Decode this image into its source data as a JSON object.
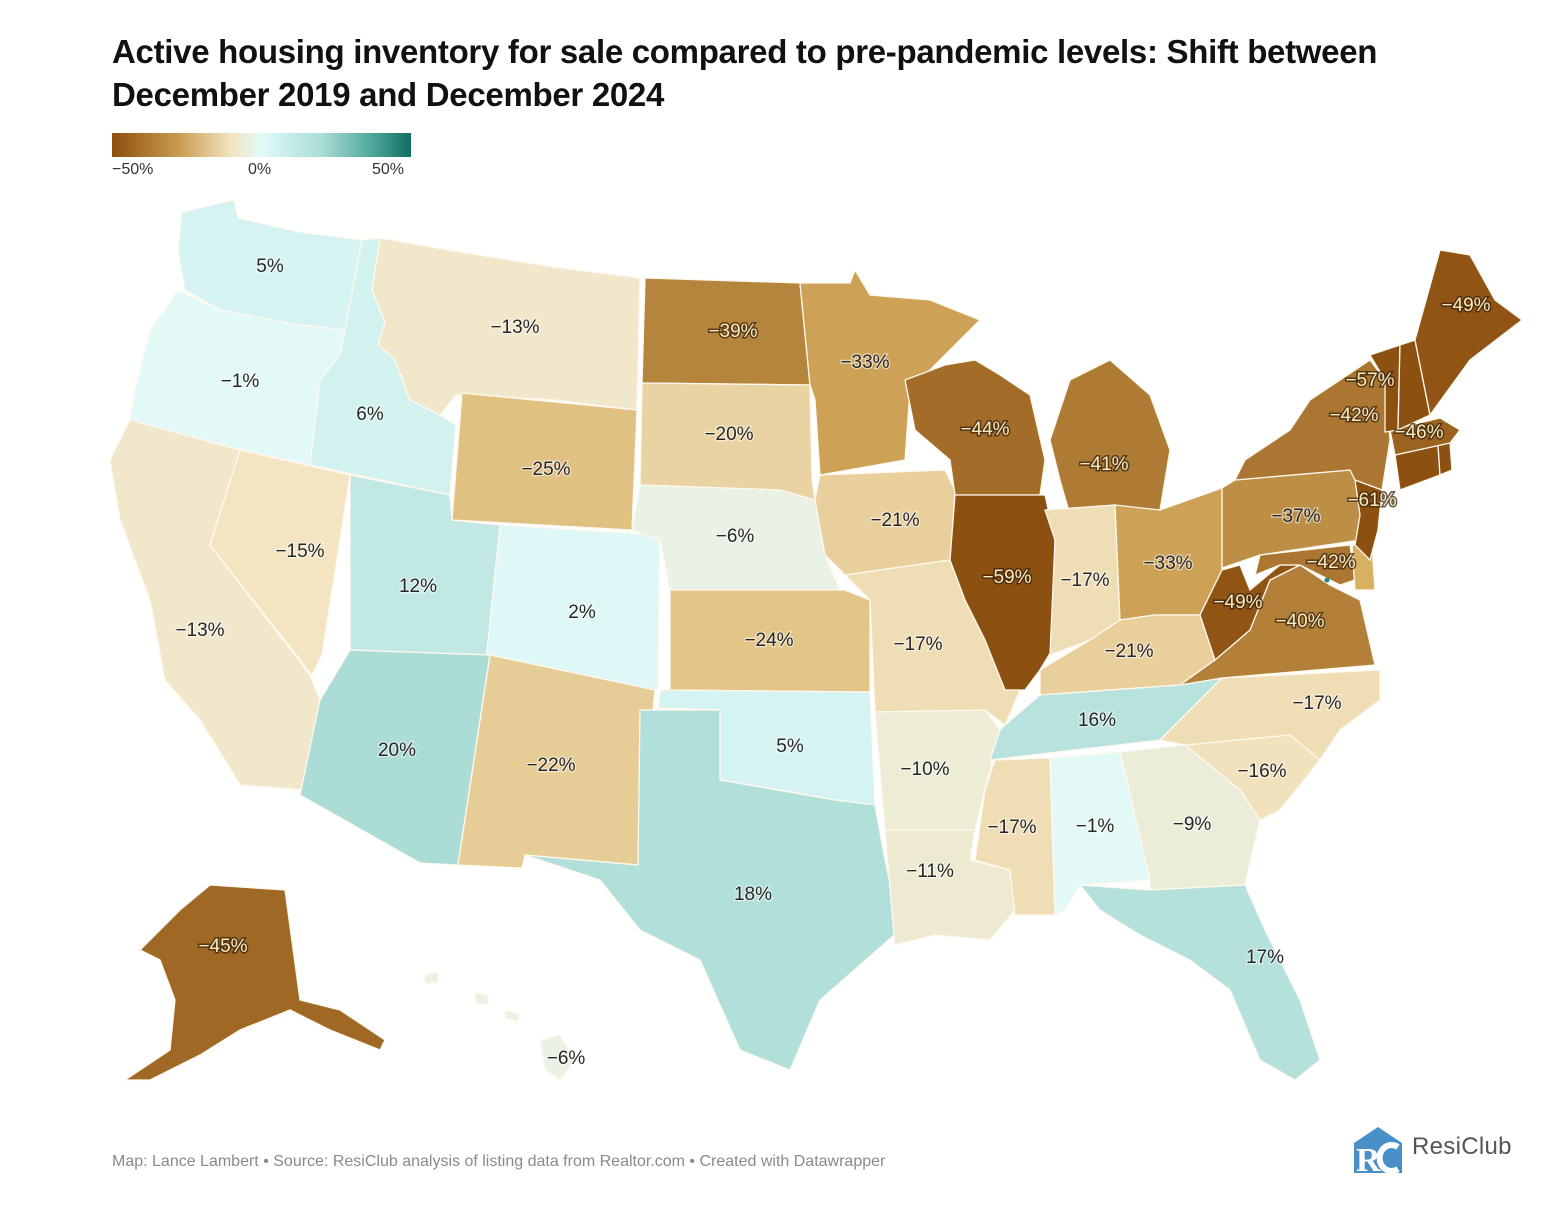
{
  "title": "Active housing inventory for sale compared to pre-pandemic levels: Shift between December 2019 and December 2024",
  "legend": {
    "ticks": [
      "-50%",
      "0%",
      "50%"
    ],
    "colors": {
      "low": "#8c5010",
      "mid": "#e0fbfb",
      "high": "#0f6f62"
    }
  },
  "chart_data": {
    "type": "choropleth",
    "title": "Active housing inventory for sale compared to pre-pandemic levels: Shift between December 2019 and December 2024",
    "unit": "%",
    "range": [
      -50,
      50
    ],
    "states": [
      {
        "id": "WA",
        "value": 5,
        "label": "5%"
      },
      {
        "id": "OR",
        "value": -1,
        "label": "-1%"
      },
      {
        "id": "CA",
        "value": -13,
        "label": "-13%"
      },
      {
        "id": "ID",
        "value": 6,
        "label": "6%"
      },
      {
        "id": "NV",
        "value": -15,
        "label": "-15%"
      },
      {
        "id": "MT",
        "value": -13,
        "label": "-13%"
      },
      {
        "id": "WY",
        "value": -25,
        "label": "-25%"
      },
      {
        "id": "UT",
        "value": 12,
        "label": "12%"
      },
      {
        "id": "CO",
        "value": 2,
        "label": "2%"
      },
      {
        "id": "AZ",
        "value": 20,
        "label": "20%"
      },
      {
        "id": "NM",
        "value": -22,
        "label": "-22%"
      },
      {
        "id": "ND",
        "value": -39,
        "label": "-39%"
      },
      {
        "id": "SD",
        "value": -20,
        "label": "-20%"
      },
      {
        "id": "NE",
        "value": -6,
        "label": "-6%"
      },
      {
        "id": "KS",
        "value": -24,
        "label": "-24%"
      },
      {
        "id": "OK",
        "value": 5,
        "label": "5%"
      },
      {
        "id": "TX",
        "value": 18,
        "label": "18%"
      },
      {
        "id": "MN",
        "value": -33,
        "label": "-33%"
      },
      {
        "id": "IA",
        "value": -21,
        "label": "-21%"
      },
      {
        "id": "MO",
        "value": -17,
        "label": "-17%"
      },
      {
        "id": "AR",
        "value": -10,
        "label": "-10%"
      },
      {
        "id": "LA",
        "value": -11,
        "label": "-11%"
      },
      {
        "id": "WI",
        "value": -44,
        "label": "-44%"
      },
      {
        "id": "IL",
        "value": -59,
        "label": "-59%"
      },
      {
        "id": "MI",
        "value": -41,
        "label": "-41%"
      },
      {
        "id": "IN",
        "value": -17,
        "label": "-17%"
      },
      {
        "id": "OH",
        "value": -33,
        "label": "-33%"
      },
      {
        "id": "KY",
        "value": -21,
        "label": "-21%"
      },
      {
        "id": "TN",
        "value": 16,
        "label": "16%"
      },
      {
        "id": "MS",
        "value": -17,
        "label": "-17%"
      },
      {
        "id": "AL",
        "value": -1,
        "label": "-1%"
      },
      {
        "id": "GA",
        "value": -9,
        "label": "-9%"
      },
      {
        "id": "FL",
        "value": 17,
        "label": "17%"
      },
      {
        "id": "SC",
        "value": -16,
        "label": "-16%"
      },
      {
        "id": "NC",
        "value": -17,
        "label": "-17%"
      },
      {
        "id": "VA",
        "value": -40,
        "label": "-40%"
      },
      {
        "id": "WV",
        "value": -49,
        "label": "-49%"
      },
      {
        "id": "MD",
        "value": -42,
        "label": "-42%"
      },
      {
        "id": "DE",
        "value": -30,
        "label": ""
      },
      {
        "id": "PA",
        "value": -37,
        "label": "-37%"
      },
      {
        "id": "NJ",
        "value": -61,
        "label": "-61%"
      },
      {
        "id": "NY",
        "value": -42,
        "label": "-42%"
      },
      {
        "id": "CT",
        "value": -55,
        "label": ""
      },
      {
        "id": "RI",
        "value": -50,
        "label": ""
      },
      {
        "id": "MA",
        "value": -46,
        "label": "-46%"
      },
      {
        "id": "VT",
        "value": -57,
        "label": "-57%"
      },
      {
        "id": "NH",
        "value": -55,
        "label": ""
      },
      {
        "id": "ME",
        "value": -49,
        "label": "-49%"
      },
      {
        "id": "AK",
        "value": -45,
        "label": "-45%"
      },
      {
        "id": "HI",
        "value": -6,
        "label": "-6%"
      }
    ]
  },
  "footer": "Map: Lance Lambert • Source: ResiClub analysis of listing data from Realtor.com • Created with Datawrapper",
  "logo": {
    "text": "ResiClub",
    "color": "#4a90c8"
  }
}
